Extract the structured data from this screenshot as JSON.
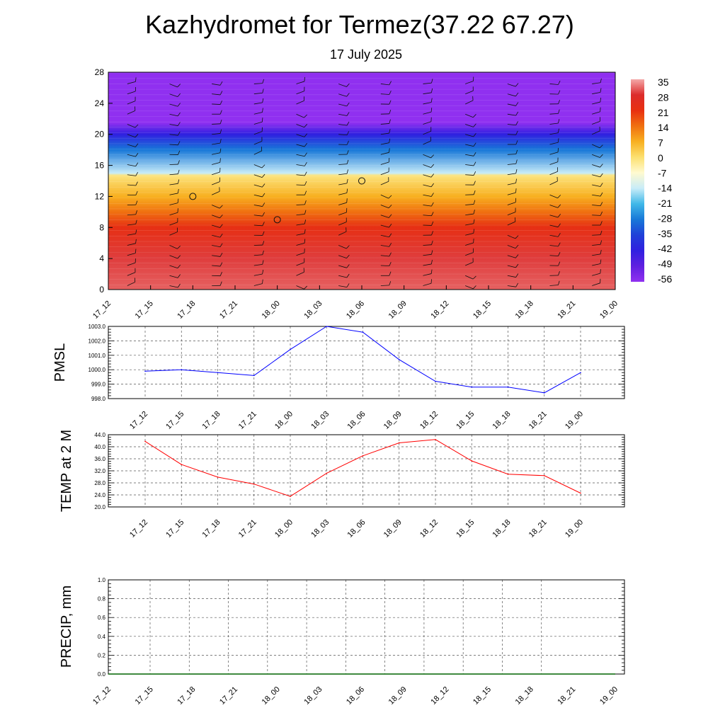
{
  "header": {
    "title": "Kazhydromet for Termez(37.22 67.27)",
    "subtitle": "17 July 2025"
  },
  "chart_data": [
    {
      "type": "heatmap",
      "panel": "cross-section",
      "x_ticks": [
        "17_12",
        "17_15",
        "17_18",
        "17_21",
        "18_00",
        "18_03",
        "18_06",
        "18_09",
        "18_12",
        "18_15",
        "18_18",
        "18_21",
        "19_00"
      ],
      "y_ticks": [
        "0",
        "4",
        "8",
        "12",
        "16",
        "20",
        "24",
        "28"
      ],
      "ylim": [
        0,
        28
      ],
      "colorbar": {
        "labels": [
          "35",
          "28",
          "21",
          "14",
          "7",
          "0",
          "-7",
          "-14",
          "-21",
          "-28",
          "-35",
          "-42",
          "-49",
          "-56"
        ],
        "colors": [
          "#f4a9a9",
          "#dc2b2b",
          "#e83010",
          "#f07010",
          "#f8b020",
          "#fce070",
          "#fffad0",
          "#c8ecf8",
          "#40b8e8",
          "#1878d8",
          "#2040d8",
          "#3020e0",
          "#6020e0",
          "#9030f0"
        ]
      },
      "z_levels": [
        {
          "y": 0,
          "value": 31
        },
        {
          "y": 4,
          "value": 29
        },
        {
          "y": 8,
          "value": 22
        },
        {
          "y": 10,
          "value": 14
        },
        {
          "y": 12,
          "value": 7
        },
        {
          "y": 14.7,
          "value": -1
        },
        {
          "y": 15,
          "value": -14
        },
        {
          "y": 18,
          "value": -28
        },
        {
          "y": 20,
          "value": -42
        },
        {
          "y": 21.5,
          "value": -56
        },
        {
          "y": 28,
          "value": -60
        }
      ],
      "calm_markers": [
        {
          "x": "17_18",
          "y": 12
        },
        {
          "x": "18_00",
          "y": 9
        },
        {
          "x": "18_06",
          "y": 14
        }
      ],
      "grid": false
    },
    {
      "type": "line",
      "panel": "pmsl",
      "ylabel": "PMSL",
      "x": [
        "17_12",
        "17_15",
        "17_18",
        "17_21",
        "18_00",
        "18_03",
        "18_06",
        "18_09",
        "18_12",
        "18_15",
        "18_18",
        "18_21",
        "19_00"
      ],
      "series": [
        {
          "values": [
            999.9,
            1000.0,
            999.8,
            999.6,
            1001.4,
            1003.0,
            1002.6,
            1000.7,
            999.2,
            998.8,
            998.8,
            998.4,
            999.8
          ],
          "color": "#0000ff"
        }
      ],
      "y_ticks": [
        "998.0",
        "999.0",
        "1000.0",
        "1001.0",
        "1002.0",
        "1003.0"
      ],
      "ylim": [
        998,
        1003
      ],
      "grid": true
    },
    {
      "type": "line",
      "panel": "temp",
      "ylabel": "TEMP at 2 M",
      "x": [
        "17_12",
        "17_15",
        "17_18",
        "17_21",
        "18_00",
        "18_03",
        "18_06",
        "18_09",
        "18_12",
        "18_15",
        "18_18",
        "18_21",
        "19_00"
      ],
      "series": [
        {
          "values": [
            41.8,
            34.1,
            29.9,
            27.6,
            23.5,
            31.2,
            37.0,
            41.3,
            42.4,
            35.3,
            30.9,
            30.4,
            24.6
          ],
          "color": "#ff0000"
        }
      ],
      "y_ticks": [
        "20.0",
        "24.0",
        "28.0",
        "32.0",
        "36.0",
        "40.0",
        "44.0"
      ],
      "ylim": [
        20,
        44
      ],
      "grid": true
    },
    {
      "type": "line",
      "panel": "precip",
      "ylabel": "PRECIP, mm",
      "x": [
        "17_12",
        "17_15",
        "17_18",
        "17_21",
        "18_00",
        "18_03",
        "18_06",
        "18_09",
        "18_12",
        "18_15",
        "18_18",
        "18_21",
        "19_00"
      ],
      "series": [
        {
          "values": [
            0,
            0,
            0,
            0,
            0,
            0,
            0,
            0,
            0,
            0,
            0,
            0,
            0
          ],
          "color": "#006400"
        }
      ],
      "y_ticks": [
        "0.0",
        "0.2",
        "0.4",
        "0.6",
        "0.8",
        "1.0"
      ],
      "ylim": [
        0,
        1
      ],
      "grid": true
    }
  ]
}
